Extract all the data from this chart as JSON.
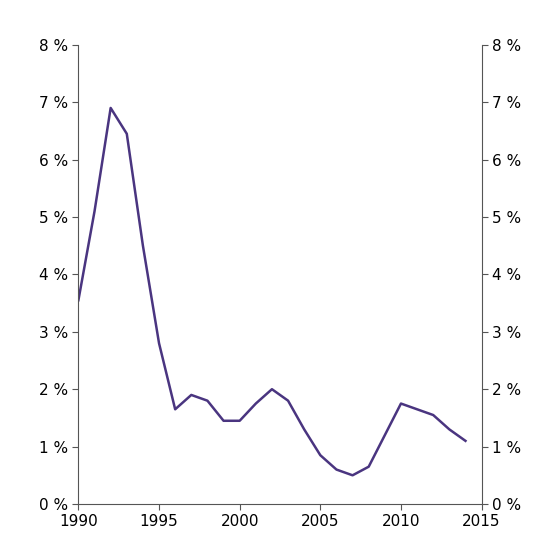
{
  "x": [
    1990,
    1991,
    1992,
    1993,
    1994,
    1995,
    1996,
    1997,
    1998,
    1999,
    2000,
    2001,
    2002,
    2003,
    2004,
    2005,
    2006,
    2007,
    2008,
    2009,
    2010,
    2011,
    2012,
    2013,
    2014
  ],
  "y": [
    3.55,
    5.1,
    6.9,
    6.45,
    4.5,
    2.8,
    1.65,
    1.9,
    1.8,
    1.45,
    1.45,
    1.75,
    2.0,
    1.8,
    1.3,
    0.85,
    0.6,
    0.5,
    0.65,
    1.2,
    1.75,
    1.65,
    1.55,
    1.3,
    1.1
  ],
  "line_color": "#4a3580",
  "line_width": 1.8,
  "xlim": [
    1990,
    2015
  ],
  "ylim": [
    0,
    8
  ],
  "xticks": [
    1990,
    1995,
    2000,
    2005,
    2010,
    2015
  ],
  "yticks": [
    0,
    1,
    2,
    3,
    4,
    5,
    6,
    7,
    8
  ],
  "ytick_labels": [
    "0 %",
    "1 %",
    "2 %",
    "3 %",
    "4 %",
    "5 %",
    "6 %",
    "7 %",
    "8 %"
  ],
  "spine_color": "#555555",
  "tick_color": "#555555",
  "label_fontsize": 11,
  "background_color": "#ffffff",
  "figsize": [
    5.6,
    5.6
  ],
  "dpi": 100
}
